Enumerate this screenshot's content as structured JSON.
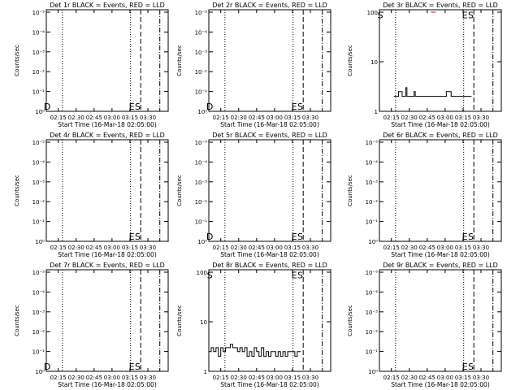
{
  "figure": {
    "xlabel": "Start Time (16-Mar-18 02:05:00)",
    "ylabel": "Counts/sec",
    "xticks": [
      "02:15",
      "02:30",
      "02:45",
      "03:00",
      "03:15",
      "03:30"
    ],
    "xtick_minutes": [
      15,
      30,
      45,
      60,
      75,
      90
    ],
    "xrange_minutes": [
      5,
      107
    ],
    "colors": {
      "events": "#000000",
      "lld": "#ff0000"
    }
  },
  "chart_data": [
    {
      "type": "line",
      "title": "Det 1r BLACK = Events, RED = LLD",
      "yscale": "log",
      "yticks": [
        "10⁰",
        "10⁻¹",
        "10⁻²",
        "10⁻³",
        "10⁻⁴",
        "10⁻⁵"
      ],
      "markers": [
        {
          "label": "D",
          "x": 5.8,
          "y": 0.05
        },
        {
          "label": "E",
          "x": 76.5,
          "y": 0.05
        },
        {
          "label": "S",
          "x": 81.5,
          "y": 0.05
        }
      ],
      "vlines": [
        {
          "x": 18.5,
          "style": "dotted"
        },
        {
          "x": 75.5,
          "style": "dotted"
        },
        {
          "x": 84,
          "style": "dashed"
        },
        {
          "x": 100,
          "style": "dashdot"
        }
      ],
      "series": []
    },
    {
      "type": "line",
      "title": "Det 2r BLACK = Events, RED = LLD",
      "yscale": "log",
      "yticks": [
        "10⁰",
        "10⁻¹",
        "10⁻²",
        "10⁻³",
        "10⁻⁴",
        "10⁻⁵"
      ],
      "markers": [
        {
          "label": "D",
          "x": 5.8,
          "y": 0.05
        },
        {
          "label": "E",
          "x": 76.5,
          "y": 0.05
        },
        {
          "label": "S",
          "x": 81.5,
          "y": 0.05
        }
      ],
      "vlines": [
        {
          "x": 18.5,
          "style": "dotted"
        },
        {
          "x": 75.5,
          "style": "dotted"
        },
        {
          "x": 84,
          "style": "dashed"
        },
        {
          "x": 100,
          "style": "dashdot"
        }
      ],
      "series": []
    },
    {
      "type": "line",
      "title": "Det 3r BLACK = Events, RED = LLD",
      "yscale": "log",
      "yticks": [
        "1",
        "10",
        "100"
      ],
      "markers": [
        {
          "label": "S",
          "x": 5.8,
          "y": 0.95
        },
        {
          "label": "E",
          "x": 76.5,
          "y": 0.95
        },
        {
          "label": "S",
          "x": 81.5,
          "y": 0.95
        }
      ],
      "vlines": [
        {
          "x": 18.5,
          "style": "dotted"
        },
        {
          "x": 75.5,
          "style": "dotted"
        },
        {
          "x": 84,
          "style": "dashed"
        },
        {
          "x": 100,
          "style": "dashdot"
        }
      ],
      "series": [
        {
          "color": "#000000",
          "x": [
            17,
            21,
            24,
            27,
            28,
            31,
            34,
            35,
            39,
            43,
            47,
            50,
            55,
            60,
            61,
            65,
            70,
            72,
            75,
            79,
            82
          ],
          "y": [
            2,
            2.5,
            2,
            3,
            2,
            2,
            2.5,
            2,
            2,
            2,
            2,
            2,
            2,
            2,
            2.5,
            2,
            2,
            2,
            2,
            2,
            2
          ]
        },
        {
          "color": "#ff0000",
          "x": [
            48,
            52
          ],
          "y": [
            100,
            100
          ]
        }
      ]
    },
    {
      "type": "line",
      "title": "Det 4r BLACK = Events, RED = LLD",
      "yscale": "log",
      "yticks": [
        "10⁰",
        "10⁻¹",
        "10⁻²",
        "10⁻³",
        "10⁻⁴",
        "10⁻⁵"
      ],
      "markers": [
        {
          "label": "E",
          "x": 76.5,
          "y": 0.05
        },
        {
          "label": "S",
          "x": 81.5,
          "y": 0.05
        }
      ],
      "vlines": [
        {
          "x": 18.5,
          "style": "dotted"
        },
        {
          "x": 75.5,
          "style": "dotted"
        },
        {
          "x": 84,
          "style": "dashed"
        },
        {
          "x": 100,
          "style": "dashdot"
        }
      ],
      "series": []
    },
    {
      "type": "line",
      "title": "Det 5r BLACK = Events, RED = LLD",
      "yscale": "log",
      "yticks": [
        "10⁰",
        "10⁻¹",
        "10⁻²",
        "10⁻³",
        "10⁻⁴",
        "10⁻⁵"
      ],
      "markers": [
        {
          "label": "D",
          "x": 5.8,
          "y": 0.05
        },
        {
          "label": "E",
          "x": 76.5,
          "y": 0.05
        },
        {
          "label": "S",
          "x": 81.5,
          "y": 0.05
        }
      ],
      "vlines": [
        {
          "x": 18.5,
          "style": "dotted"
        },
        {
          "x": 75.5,
          "style": "dotted"
        },
        {
          "x": 84,
          "style": "dashed"
        },
        {
          "x": 100,
          "style": "dashdot"
        }
      ],
      "series": []
    },
    {
      "type": "line",
      "title": "Det 6r BLACK = Events, RED = LLD",
      "yscale": "log",
      "yticks": [
        "10⁰",
        "10⁻¹",
        "10⁻²",
        "10⁻³",
        "10⁻⁴",
        "10⁻⁵"
      ],
      "markers": [
        {
          "label": "E",
          "x": 76.5,
          "y": 0.05
        },
        {
          "label": "S",
          "x": 81.5,
          "y": 0.05
        }
      ],
      "vlines": [
        {
          "x": 18.5,
          "style": "dotted"
        },
        {
          "x": 75.5,
          "style": "dotted"
        },
        {
          "x": 84,
          "style": "dashed"
        },
        {
          "x": 100,
          "style": "dashdot"
        }
      ],
      "series": []
    },
    {
      "type": "line",
      "title": "Det 7r BLACK = Events, RED = LLD",
      "yscale": "log",
      "yticks": [
        "10⁰",
        "10⁻¹",
        "10⁻²",
        "10⁻³",
        "10⁻⁴",
        "10⁻⁵"
      ],
      "markers": [
        {
          "label": "D",
          "x": 5.8,
          "y": 0.05
        },
        {
          "label": "E",
          "x": 76.5,
          "y": 0.05
        },
        {
          "label": "S",
          "x": 81.5,
          "y": 0.05
        }
      ],
      "vlines": [
        {
          "x": 18.5,
          "style": "dotted"
        },
        {
          "x": 75.5,
          "style": "dotted"
        },
        {
          "x": 84,
          "style": "dashed"
        },
        {
          "x": 100,
          "style": "dashdot"
        }
      ],
      "series": []
    },
    {
      "type": "line",
      "title": "Det 8r BLACK = Events, RED = LLD",
      "yscale": "log",
      "yticks": [
        "1",
        "10",
        "100"
      ],
      "markers": [
        {
          "label": "S",
          "x": 5.8,
          "y": 0.95
        },
        {
          "label": "E",
          "x": 76.5,
          "y": 0.95
        },
        {
          "label": "S",
          "x": 81.5,
          "y": 0.95
        }
      ],
      "vlines": [
        {
          "x": 18.5,
          "style": "dotted"
        },
        {
          "x": 75.5,
          "style": "dotted"
        },
        {
          "x": 84,
          "style": "dashed"
        },
        {
          "x": 100,
          "style": "dashdot"
        }
      ],
      "series": [
        {
          "color": "#000000",
          "x": [
            5,
            7,
            9,
            11,
            13,
            15,
            17,
            19,
            21,
            23,
            25,
            27,
            29,
            31,
            33,
            35,
            37,
            39,
            41,
            43,
            45,
            47,
            49,
            51,
            53,
            55,
            57,
            59,
            61,
            63,
            65,
            67,
            69,
            71,
            73,
            75,
            77,
            79,
            81,
            82
          ],
          "y": [
            2.5,
            3,
            2.5,
            3,
            2,
            3,
            2.5,
            3,
            3,
            3.5,
            3,
            3,
            2.5,
            3,
            2.5,
            3,
            2,
            2.5,
            2,
            3,
            2.5,
            2,
            3,
            2,
            2.5,
            2,
            2.5,
            2.5,
            2,
            2.5,
            2,
            2.5,
            2,
            2.5,
            2.5,
            2.5,
            2,
            2.5,
            2.5,
            2.5
          ]
        }
      ]
    },
    {
      "type": "line",
      "title": "Det 9r BLACK = Events, RED = LLD",
      "yscale": "log",
      "yticks": [
        "10⁰",
        "10⁻¹",
        "10⁻²",
        "10⁻³",
        "10⁻⁴",
        "10⁻⁵"
      ],
      "markers": [
        {
          "label": "E",
          "x": 76.5,
          "y": 0.05
        },
        {
          "label": "S",
          "x": 81.5,
          "y": 0.05
        }
      ],
      "vlines": [
        {
          "x": 18.5,
          "style": "dotted"
        },
        {
          "x": 75.5,
          "style": "dotted"
        },
        {
          "x": 84,
          "style": "dashed"
        },
        {
          "x": 100,
          "style": "dashdot"
        }
      ],
      "series": []
    }
  ]
}
